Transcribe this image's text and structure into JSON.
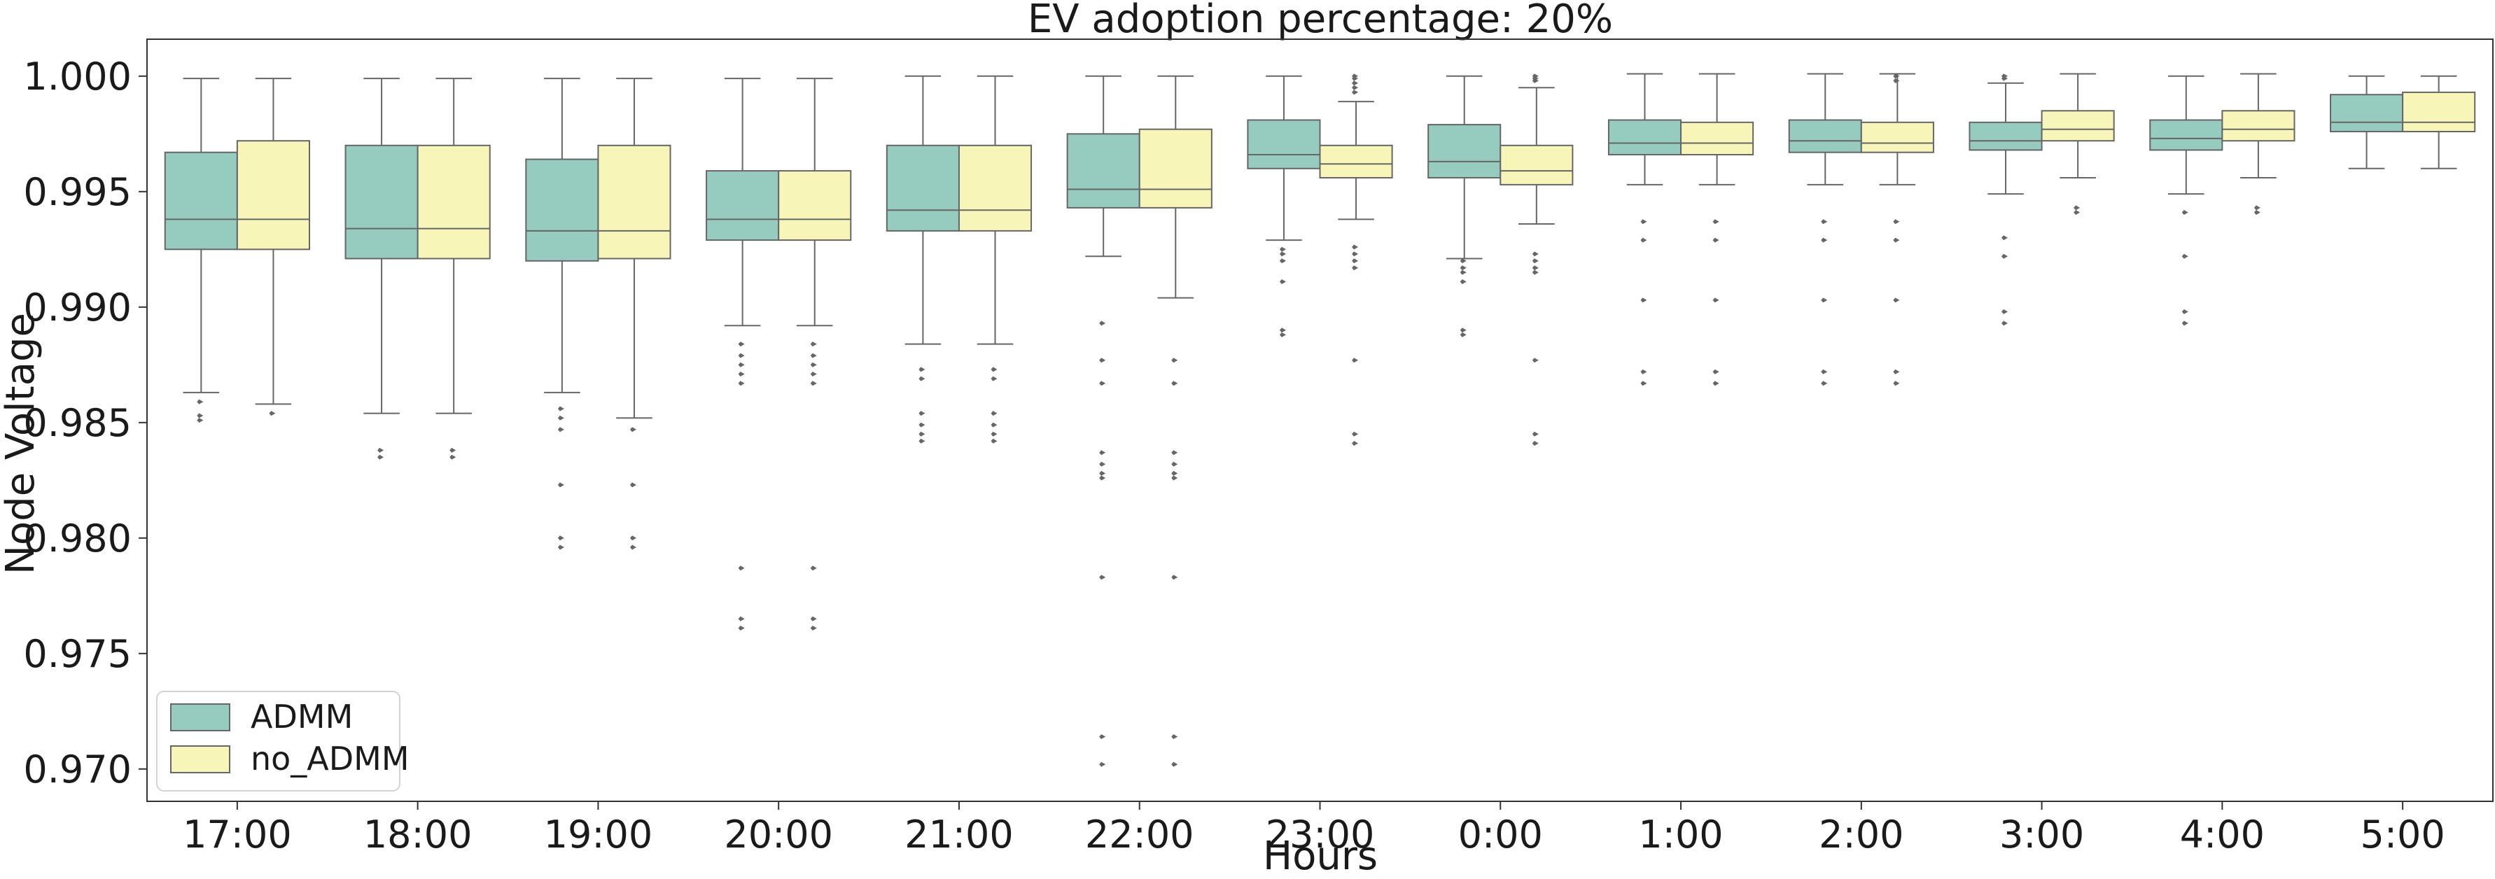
{
  "chart_data": {
    "type": "box",
    "title": "EV adoption percentage: 20%",
    "xlabel": "Hours",
    "ylabel": "Node Voltage",
    "categories": [
      "17:00",
      "18:00",
      "19:00",
      "20:00",
      "21:00",
      "22:00",
      "23:00",
      "0:00",
      "1:00",
      "2:00",
      "3:00",
      "4:00",
      "5:00"
    ],
    "ylim": [
      0.9686,
      1.0016
    ],
    "yticks": [
      "0.970",
      "0.975",
      "0.980",
      "0.985",
      "0.990",
      "0.995",
      "1.000"
    ],
    "ytick_values": [
      0.97,
      0.975,
      0.98,
      0.985,
      0.99,
      0.995,
      1.0
    ],
    "legend_position": "lower-left",
    "grid": false,
    "series": [
      {
        "name": "ADMM",
        "color": "#96cbc0",
        "boxes": [
          {
            "whislo": 0.9863,
            "q1": 0.9925,
            "med": 0.9938,
            "q3": 0.9967,
            "whishi": 0.9999,
            "fliers": [
              0.9859,
              0.9853,
              0.9851
            ]
          },
          {
            "whislo": 0.9854,
            "q1": 0.9921,
            "med": 0.9934,
            "q3": 0.997,
            "whishi": 0.9999,
            "fliers": [
              0.9838,
              0.9835
            ]
          },
          {
            "whislo": 0.9863,
            "q1": 0.992,
            "med": 0.9933,
            "q3": 0.9964,
            "whishi": 0.9999,
            "fliers": [
              0.9856,
              0.9852,
              0.9847,
              0.9823,
              0.98,
              0.9796
            ]
          },
          {
            "whislo": 0.9892,
            "q1": 0.9929,
            "med": 0.9938,
            "q3": 0.9959,
            "whishi": 0.9999,
            "fliers": [
              0.9884,
              0.9879,
              0.9875,
              0.9871,
              0.9867,
              0.9787,
              0.9765,
              0.9761
            ]
          },
          {
            "whislo": 0.9884,
            "q1": 0.9933,
            "med": 0.9942,
            "q3": 0.997,
            "whishi": 1.0,
            "fliers": [
              0.9873,
              0.9869,
              0.9854,
              0.9849,
              0.9845,
              0.9842
            ]
          },
          {
            "whislo": 0.9922,
            "q1": 0.9943,
            "med": 0.9951,
            "q3": 0.9975,
            "whishi": 1.0,
            "fliers": [
              0.9893,
              0.9877,
              0.9867,
              0.9837,
              0.9832,
              0.9828,
              0.9826,
              0.9783,
              0.9714,
              0.9702
            ]
          },
          {
            "whislo": 0.9929,
            "q1": 0.996,
            "med": 0.9966,
            "q3": 0.9981,
            "whishi": 1.0,
            "fliers": [
              0.9925,
              0.9923,
              0.992,
              0.9911,
              0.989,
              0.9888
            ]
          },
          {
            "whislo": 0.9921,
            "q1": 0.9956,
            "med": 0.9963,
            "q3": 0.9979,
            "whishi": 1.0,
            "fliers": [
              0.992,
              0.9917,
              0.9915,
              0.9911,
              0.989,
              0.9888
            ]
          },
          {
            "whislo": 0.9953,
            "q1": 0.9966,
            "med": 0.9971,
            "q3": 0.9981,
            "whishi": 1.0001,
            "fliers": [
              0.9937,
              0.9929,
              0.9903,
              0.9872,
              0.9867
            ]
          },
          {
            "whislo": 0.9953,
            "q1": 0.9967,
            "med": 0.9972,
            "q3": 0.9981,
            "whishi": 1.0001,
            "fliers": [
              0.9937,
              0.9929,
              0.9903,
              0.9872,
              0.9867
            ]
          },
          {
            "whislo": 0.9949,
            "q1": 0.9968,
            "med": 0.9972,
            "q3": 0.998,
            "whishi": 0.9997,
            "fliers": [
              1.0,
              0.9999,
              0.993,
              0.9922,
              0.9898,
              0.9893
            ]
          },
          {
            "whislo": 0.9949,
            "q1": 0.9968,
            "med": 0.9973,
            "q3": 0.9981,
            "whishi": 1.0,
            "fliers": [
              0.9941,
              0.9922,
              0.9898,
              0.9893
            ]
          },
          {
            "whislo": 0.996,
            "q1": 0.9976,
            "med": 0.998,
            "q3": 0.9992,
            "whishi": 1.0,
            "fliers": []
          }
        ]
      },
      {
        "name": "no_ADMM",
        "color": "#f7f6b8",
        "boxes": [
          {
            "whislo": 0.9858,
            "q1": 0.9925,
            "med": 0.9938,
            "q3": 0.9972,
            "whishi": 0.9999,
            "fliers": [
              0.9854
            ]
          },
          {
            "whislo": 0.9854,
            "q1": 0.9921,
            "med": 0.9934,
            "q3": 0.997,
            "whishi": 0.9999,
            "fliers": [
              0.9838,
              0.9835
            ]
          },
          {
            "whislo": 0.9852,
            "q1": 0.9921,
            "med": 0.9933,
            "q3": 0.997,
            "whishi": 0.9999,
            "fliers": [
              0.9847,
              0.9823,
              0.98,
              0.9796
            ]
          },
          {
            "whislo": 0.9892,
            "q1": 0.9929,
            "med": 0.9938,
            "q3": 0.9959,
            "whishi": 0.9999,
            "fliers": [
              0.9884,
              0.9879,
              0.9875,
              0.9871,
              0.9867,
              0.9787,
              0.9765,
              0.9761
            ]
          },
          {
            "whislo": 0.9884,
            "q1": 0.9933,
            "med": 0.9942,
            "q3": 0.997,
            "whishi": 1.0,
            "fliers": [
              0.9873,
              0.9869,
              0.9854,
              0.9849,
              0.9845,
              0.9842
            ]
          },
          {
            "whislo": 0.9904,
            "q1": 0.9943,
            "med": 0.9951,
            "q3": 0.9977,
            "whishi": 1.0,
            "fliers": [
              0.9877,
              0.9867,
              0.9837,
              0.9832,
              0.9828,
              0.9826,
              0.9783,
              0.9714,
              0.9702
            ]
          },
          {
            "whislo": 0.9938,
            "q1": 0.9956,
            "med": 0.9962,
            "q3": 0.997,
            "whishi": 0.9989,
            "fliers": [
              1.0,
              0.9999,
              0.9997,
              0.9995,
              0.9993,
              0.9926,
              0.9923,
              0.992,
              0.9917,
              0.9877,
              0.9845,
              0.9841
            ]
          },
          {
            "whislo": 0.9936,
            "q1": 0.9953,
            "med": 0.9959,
            "q3": 0.997,
            "whishi": 0.9995,
            "fliers": [
              1.0,
              0.9999,
              0.9998,
              0.9923,
              0.992,
              0.9917,
              0.9915,
              0.9877,
              0.9845,
              0.9841
            ]
          },
          {
            "whislo": 0.9953,
            "q1": 0.9966,
            "med": 0.9971,
            "q3": 0.998,
            "whishi": 1.0001,
            "fliers": [
              0.9937,
              0.9929,
              0.9903,
              0.9872,
              0.9867
            ]
          },
          {
            "whislo": 0.9953,
            "q1": 0.9967,
            "med": 0.9971,
            "q3": 0.998,
            "whishi": 1.0001,
            "fliers": [
              1.0,
              0.9998,
              0.9937,
              0.9929,
              0.9903,
              0.9872,
              0.9867
            ]
          },
          {
            "whislo": 0.9956,
            "q1": 0.9972,
            "med": 0.9977,
            "q3": 0.9985,
            "whishi": 1.0001,
            "fliers": [
              0.9943,
              0.9941
            ]
          },
          {
            "whislo": 0.9956,
            "q1": 0.9972,
            "med": 0.9977,
            "q3": 0.9985,
            "whishi": 1.0001,
            "fliers": [
              0.9943,
              0.9941
            ]
          },
          {
            "whislo": 0.996,
            "q1": 0.9976,
            "med": 0.998,
            "q3": 0.9993,
            "whishi": 1.0,
            "fliers": []
          }
        ]
      }
    ]
  }
}
